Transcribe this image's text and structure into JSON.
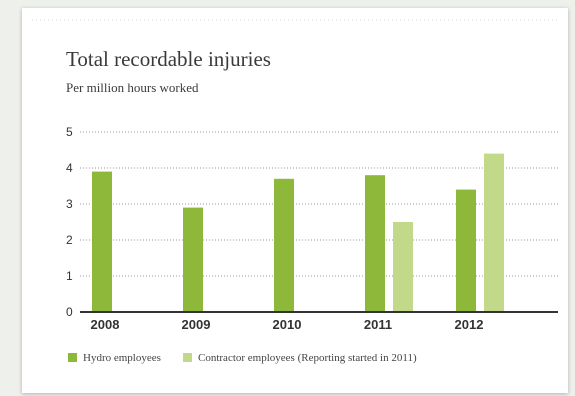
{
  "colors": {
    "hydro": "#8db83a",
    "contractor": "#c2d98a",
    "grid": "#9a9a9a",
    "axis": "#333333"
  },
  "chart_data": {
    "type": "bar",
    "title": "Total recordable injuries",
    "subtitle": "Per million hours worked",
    "categories": [
      "2008",
      "2009",
      "2010",
      "2011",
      "2012"
    ],
    "series": [
      {
        "name": "Hydro employees",
        "values": [
          3.9,
          2.9,
          3.7,
          3.8,
          3.4
        ]
      },
      {
        "name": "Contractor employees (Reporting started in 2011)",
        "values": [
          null,
          null,
          null,
          2.5,
          4.4
        ]
      }
    ],
    "ylim": [
      0,
      5
    ],
    "yticks": [
      "0",
      "1",
      "2",
      "3",
      "4",
      "5"
    ],
    "grid": true,
    "legend_position": "bottom"
  }
}
